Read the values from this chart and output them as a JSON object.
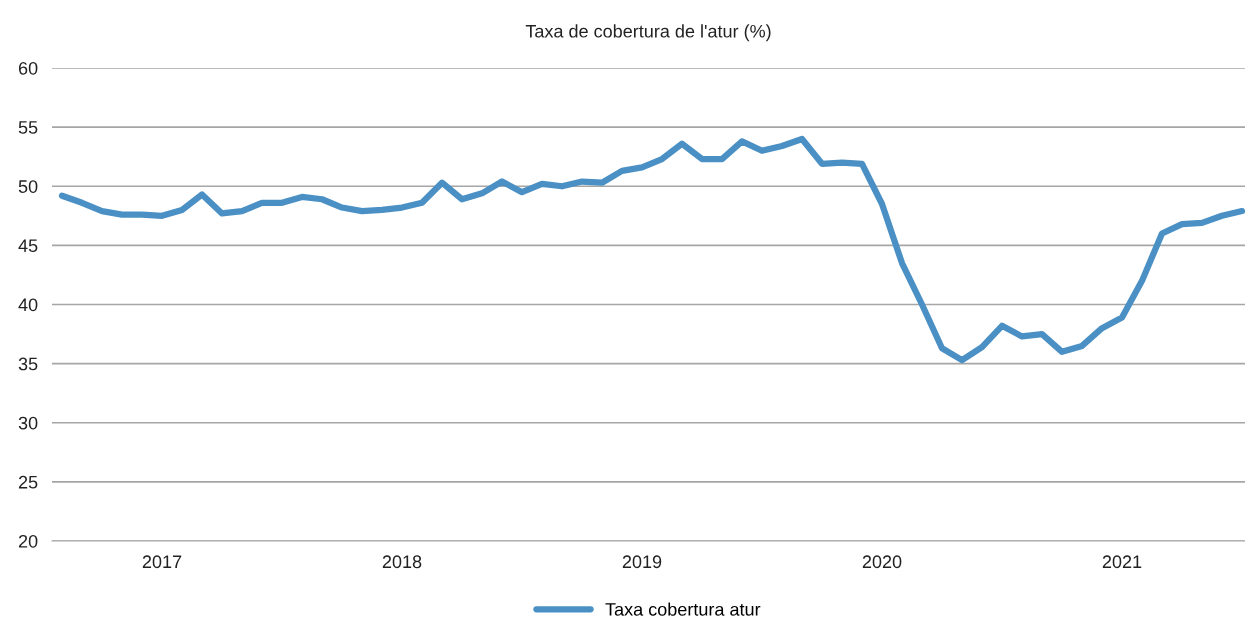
{
  "chart_data": {
    "type": "line",
    "title": "Taxa de cobertura de l'atur (%)",
    "categories": [
      null,
      null,
      null,
      null,
      null,
      "2017",
      null,
      null,
      null,
      null,
      null,
      null,
      null,
      null,
      null,
      null,
      null,
      "2018",
      null,
      null,
      null,
      null,
      null,
      null,
      null,
      null,
      null,
      null,
      null,
      "2019",
      null,
      null,
      null,
      null,
      null,
      null,
      null,
      null,
      null,
      null,
      null,
      "2020",
      null,
      null,
      null,
      null,
      null,
      null,
      null,
      null,
      null,
      null,
      null,
      "2021",
      null,
      null,
      null,
      null,
      null,
      null
    ],
    "series": [
      {
        "name": "Taxa cobertura atur",
        "color": "#4a90c4",
        "values": [
          49.2,
          48.6,
          47.9,
          47.6,
          47.6,
          47.5,
          48.0,
          49.3,
          47.7,
          47.9,
          48.6,
          48.6,
          49.1,
          48.9,
          48.2,
          47.9,
          48.0,
          48.2,
          48.6,
          50.3,
          48.9,
          49.4,
          50.4,
          49.5,
          50.2,
          50.0,
          50.4,
          50.3,
          51.3,
          51.6,
          52.3,
          53.6,
          52.3,
          52.3,
          53.8,
          53.0,
          53.4,
          54.0,
          51.9,
          52.0,
          51.9,
          48.5,
          43.5,
          40.0,
          36.3,
          35.3,
          36.4,
          38.2,
          37.3,
          37.5,
          36.0,
          36.5,
          38.0,
          38.9,
          42.0,
          46.0,
          46.8,
          46.9,
          47.5,
          47.9
        ]
      }
    ],
    "ylim": [
      20,
      60
    ],
    "yticks": [
      20,
      25,
      30,
      35,
      40,
      45,
      50,
      55,
      60
    ],
    "grid": "y",
    "legend": "bottom",
    "marker": "none",
    "line_style": "solid"
  }
}
